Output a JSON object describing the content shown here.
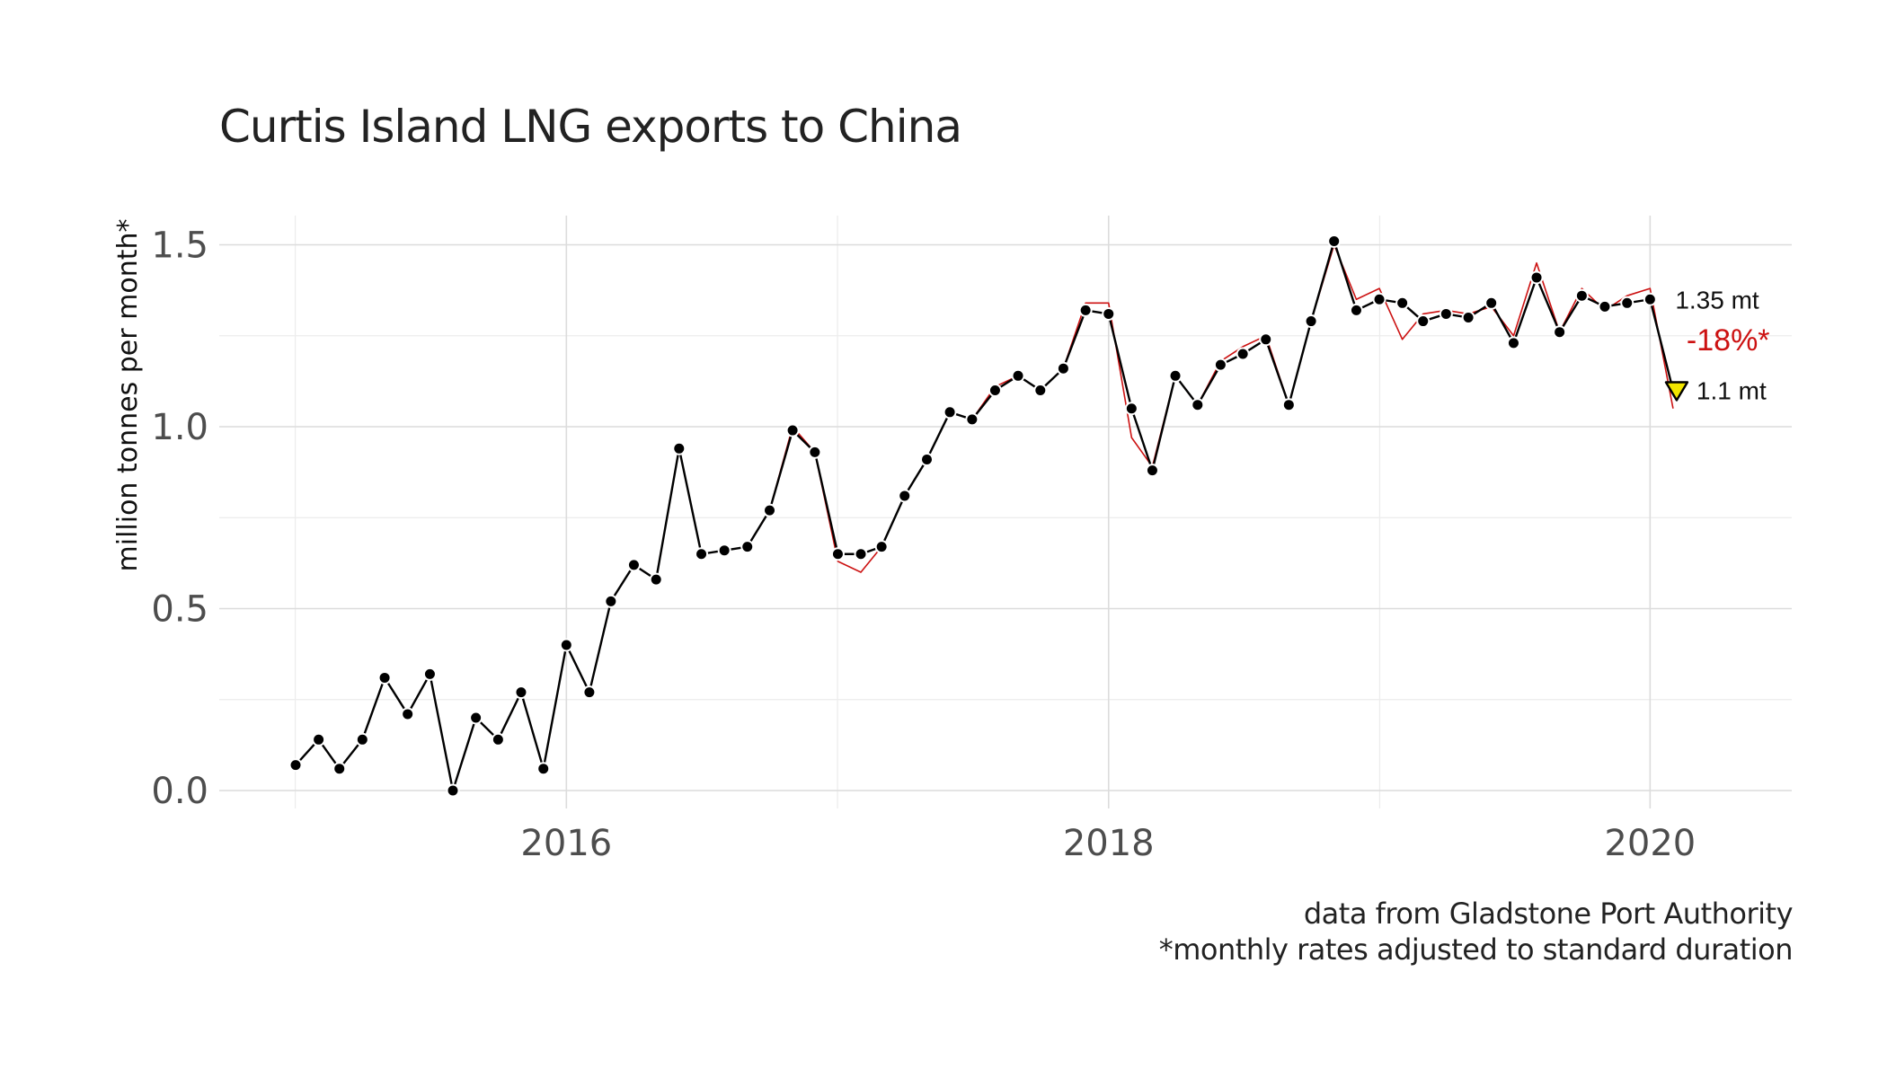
{
  "chart_data": {
    "type": "line",
    "title": "Curtis Island LNG exports to China",
    "ylabel": "million tonnes per month*",
    "xlabel": "",
    "caption": [
      "data from Gladstone Port Authority",
      "*monthly rates adjusted to standard duration"
    ],
    "ylim": [
      0,
      1.6
    ],
    "yticks": [
      0.0,
      0.5,
      1.0,
      1.5
    ],
    "ytick_labels": [
      "0.0",
      "0.5",
      "1.0",
      "1.5"
    ],
    "xlim": [
      "2014-09-20",
      "2020-07-10"
    ],
    "xticks": [
      "2016-01-01",
      "2018-01-01",
      "2020-01-01"
    ],
    "xtick_labels": [
      "2016",
      "2018",
      "2020"
    ],
    "grid": true,
    "series": [
      {
        "style": "black line with points",
        "color": "#000000",
        "x": [
          "2015-01",
          "2015-02",
          "2015-03",
          "2015-04",
          "2015-05",
          "2015-06",
          "2015-07",
          "2015-08",
          "2015-09",
          "2015-10",
          "2015-11",
          "2015-12",
          "2016-01",
          "2016-02",
          "2016-03",
          "2016-04",
          "2016-05",
          "2016-06",
          "2016-07",
          "2016-08",
          "2016-09",
          "2016-10",
          "2016-11",
          "2016-12",
          "2017-01",
          "2017-02",
          "2017-03",
          "2017-04",
          "2017-05",
          "2017-06",
          "2017-07",
          "2017-08",
          "2017-09",
          "2017-10",
          "2017-11",
          "2017-12",
          "2018-01",
          "2018-02",
          "2018-03",
          "2018-04",
          "2018-05",
          "2018-06",
          "2018-07",
          "2018-08",
          "2018-09",
          "2018-10",
          "2018-11",
          "2018-12",
          "2019-01",
          "2019-02",
          "2019-03",
          "2019-04",
          "2019-05",
          "2019-06",
          "2019-07",
          "2019-08",
          "2019-09",
          "2019-10",
          "2019-11",
          "2019-12",
          "2020-01",
          "2020-02"
        ],
        "values": [
          0.07,
          0.14,
          0.06,
          0.14,
          0.31,
          0.21,
          0.32,
          0.0,
          0.2,
          0.14,
          0.27,
          0.06,
          0.4,
          0.27,
          0.52,
          0.62,
          0.58,
          0.94,
          0.65,
          0.66,
          0.67,
          0.77,
          0.99,
          0.93,
          0.65,
          0.65,
          0.67,
          0.81,
          0.91,
          1.04,
          1.02,
          1.1,
          1.14,
          1.1,
          1.16,
          1.32,
          1.31,
          1.05,
          0.88,
          1.14,
          1.06,
          1.17,
          1.2,
          1.24,
          1.06,
          1.29,
          1.51,
          1.32,
          1.35,
          1.34,
          1.29,
          1.31,
          1.3,
          1.34,
          1.23,
          1.41,
          1.26,
          1.36,
          1.33,
          1.34,
          1.35,
          1.1
        ]
      },
      {
        "style": "thin red line (raw monthly rates)",
        "color": "#cc1111",
        "x": [
          "2015-01",
          "2015-02",
          "2015-03",
          "2015-04",
          "2015-05",
          "2015-06",
          "2015-07",
          "2015-08",
          "2015-09",
          "2015-10",
          "2015-11",
          "2015-12",
          "2016-01",
          "2016-02",
          "2016-03",
          "2016-04",
          "2016-05",
          "2016-06",
          "2016-07",
          "2016-08",
          "2016-09",
          "2016-10",
          "2016-11",
          "2016-12",
          "2017-01",
          "2017-02",
          "2017-03",
          "2017-04",
          "2017-05",
          "2017-06",
          "2017-07",
          "2017-08",
          "2017-09",
          "2017-10",
          "2017-11",
          "2017-12",
          "2018-01",
          "2018-02",
          "2018-03",
          "2018-04",
          "2018-05",
          "2018-06",
          "2018-07",
          "2018-08",
          "2018-09",
          "2018-10",
          "2018-11",
          "2018-12",
          "2019-01",
          "2019-02",
          "2019-03",
          "2019-04",
          "2019-05",
          "2019-06",
          "2019-07",
          "2019-08",
          "2019-09",
          "2019-10",
          "2019-11",
          "2019-12",
          "2020-01",
          "2020-02"
        ],
        "values": [
          0.07,
          0.14,
          0.06,
          0.14,
          0.31,
          0.21,
          0.32,
          0.0,
          0.2,
          0.14,
          0.27,
          0.06,
          0.4,
          0.27,
          0.52,
          0.62,
          0.58,
          0.94,
          0.65,
          0.66,
          0.67,
          0.77,
          1.0,
          0.93,
          0.63,
          0.6,
          0.67,
          0.81,
          0.91,
          1.04,
          1.02,
          1.11,
          1.14,
          1.1,
          1.16,
          1.34,
          1.34,
          0.97,
          0.89,
          1.14,
          1.06,
          1.18,
          1.22,
          1.25,
          1.06,
          1.29,
          1.5,
          1.35,
          1.38,
          1.24,
          1.31,
          1.32,
          1.31,
          1.33,
          1.25,
          1.45,
          1.26,
          1.38,
          1.32,
          1.36,
          1.38,
          1.05
        ]
      }
    ],
    "annotations": [
      {
        "text": "1.35 mt",
        "x": "2020-01",
        "y": 1.35,
        "color": "#111111"
      },
      {
        "text": "-18%*",
        "x": "2020-02",
        "y": 1.24,
        "color": "#cc1111"
      },
      {
        "text": "1.1 mt",
        "x": "2020-02",
        "y": 1.1,
        "color": "#111111"
      }
    ],
    "highlight_marker": {
      "shape": "down-triangle",
      "x": "2020-02",
      "y": 1.1,
      "fill": "#f2e600",
      "stroke": "#000000"
    }
  }
}
